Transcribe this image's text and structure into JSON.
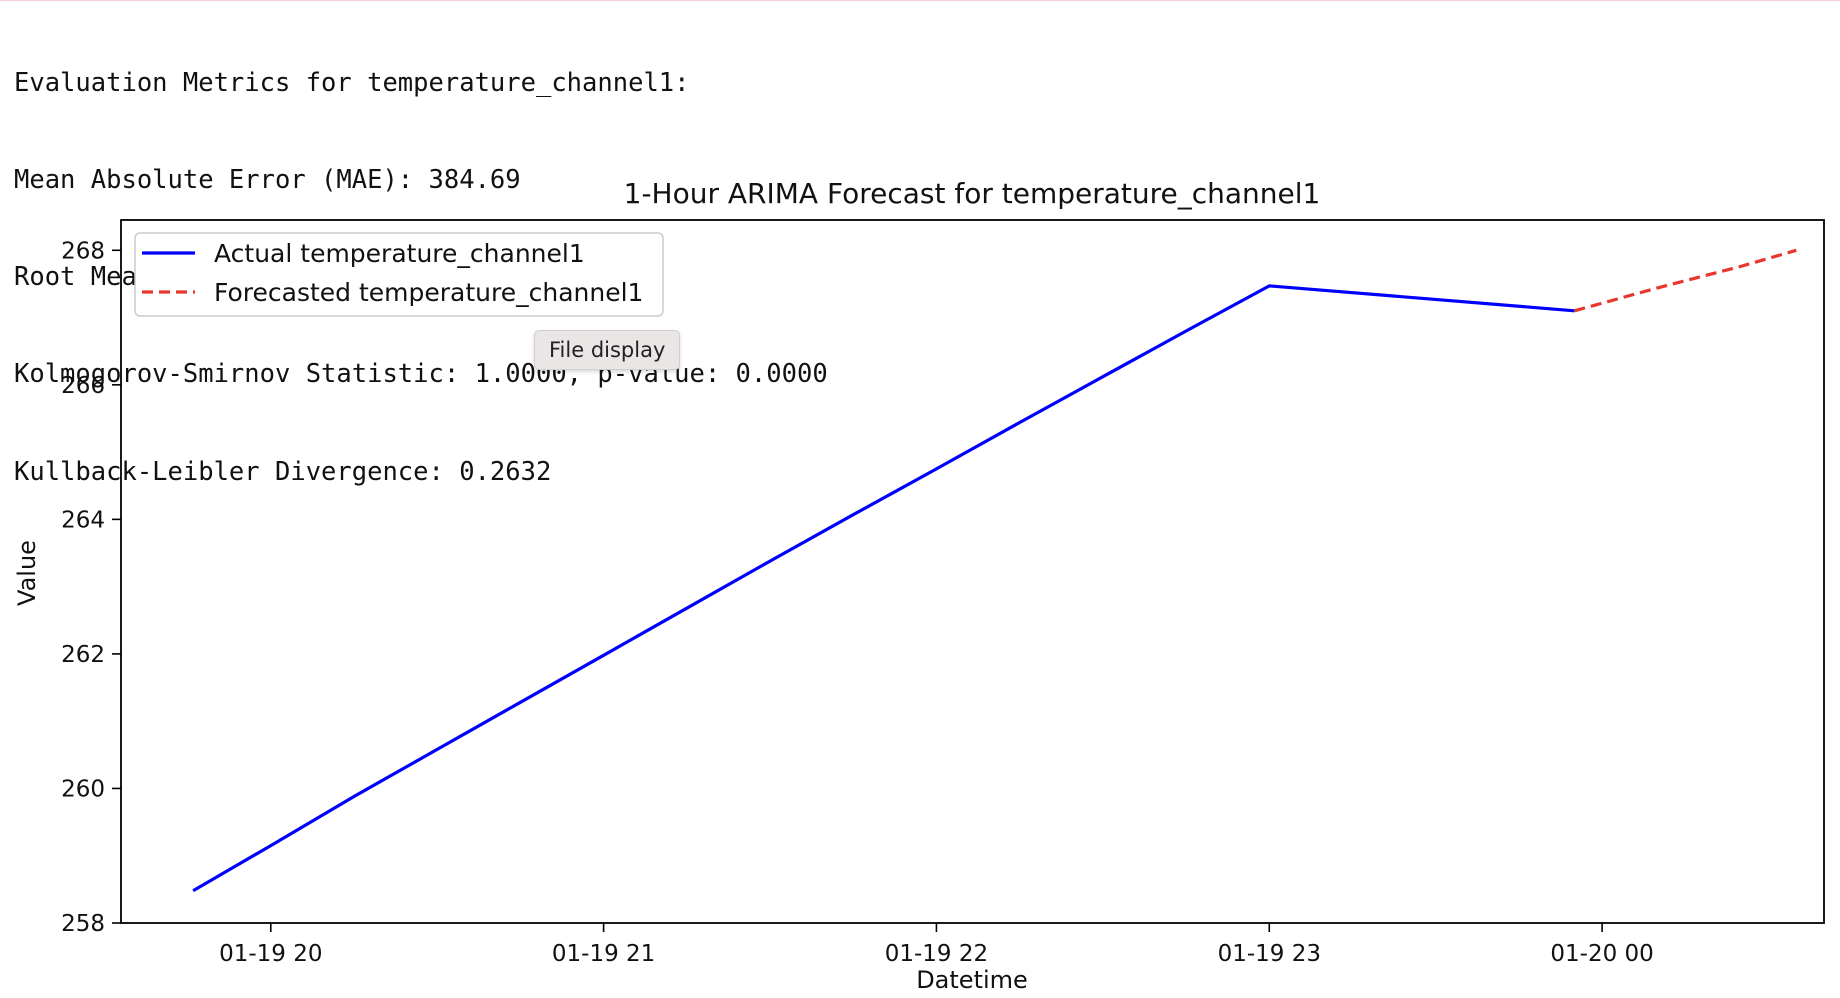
{
  "output": {
    "metrics_lines": [
      "Evaluation Metrics for temperature_channel1:",
      "Mean Absolute Error (MAE): 384.69",
      "Root Mean Squared Error (RMSE): 397.01",
      "Kolmogorov-Smirnov Statistic: 1.0000, p-value: 0.0000",
      "Kullback-Leibler Divergence: 0.2632"
    ]
  },
  "tooltip": {
    "label": "File display"
  },
  "chart_data": {
    "type": "line",
    "title": "1-Hour ARIMA Forecast for temperature_channel1",
    "xlabel": "Datetime",
    "ylabel": "Value",
    "x_ticks": [
      {
        "time": "2024-01-19 20:00",
        "label": "01-19 20"
      },
      {
        "time": "2024-01-19 21:00",
        "label": "01-19 21"
      },
      {
        "time": "2024-01-19 22:00",
        "label": "01-19 22"
      },
      {
        "time": "2024-01-19 23:00",
        "label": "01-19 23"
      },
      {
        "time": "2024-01-20 00:00",
        "label": "01-20 00"
      }
    ],
    "xlim": [
      "2024-01-19 19:33",
      "2024-01-20 00:40"
    ],
    "ylim": [
      258,
      268.45
    ],
    "y_ticks": [
      258,
      260,
      262,
      264,
      266,
      268
    ],
    "grid": false,
    "legend_position": "upper left",
    "series": [
      {
        "name": "Actual temperature_channel1",
        "color": "#0000ff",
        "style": "solid",
        "points": [
          {
            "x": "2024-01-19 19:46",
            "y": 258.48
          },
          {
            "x": "2024-01-19 20:00",
            "y": 259.15
          },
          {
            "x": "2024-01-19 20:15",
            "y": 259.88
          },
          {
            "x": "2024-01-19 20:30",
            "y": 260.58
          },
          {
            "x": "2024-01-19 20:45",
            "y": 261.28
          },
          {
            "x": "2024-01-19 21:00",
            "y": 261.98
          },
          {
            "x": "2024-01-19 21:15",
            "y": 262.68
          },
          {
            "x": "2024-01-19 21:30",
            "y": 263.38
          },
          {
            "x": "2024-01-19 21:45",
            "y": 264.07
          },
          {
            "x": "2024-01-19 22:00",
            "y": 264.75
          },
          {
            "x": "2024-01-19 22:15",
            "y": 265.44
          },
          {
            "x": "2024-01-19 22:30",
            "y": 266.12
          },
          {
            "x": "2024-01-19 22:45",
            "y": 266.8
          },
          {
            "x": "2024-01-19 23:00",
            "y": 267.47
          },
          {
            "x": "2024-01-19 23:55",
            "y": 267.1
          }
        ]
      },
      {
        "name": "Forecasted temperature_channel1",
        "color": "#e8382e",
        "style": "dashed",
        "points": [
          {
            "x": "2024-01-19 23:55",
            "y": 267.1
          },
          {
            "x": "2024-01-20 00:10",
            "y": 267.44
          },
          {
            "x": "2024-01-20 00:25",
            "y": 267.76
          },
          {
            "x": "2024-01-20 00:35",
            "y": 268.0
          }
        ]
      }
    ]
  }
}
